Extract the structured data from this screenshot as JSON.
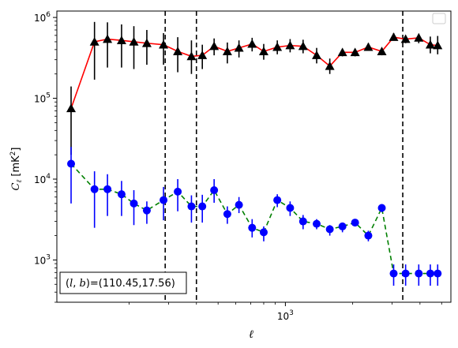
{
  "chart_data": {
    "type": "line",
    "xscale": "log",
    "yscale": "log",
    "xlim": [
      95,
      5500
    ],
    "ylim": [
      300,
      1200000
    ],
    "xlabel": "ℓ",
    "ylabel": "C_ℓ  [mK²]",
    "ylabel_sub": "ℓ",
    "ylabel_main": "C",
    "ylabel_unit": "[mK",
    "ylabel_unit_sup": "2",
    "ylabel_unit_close": "]",
    "legend": "top-right",
    "x_ticks": [
      {
        "value": 1000,
        "base": "10",
        "exp": "3"
      }
    ],
    "y_ticks": [
      {
        "value": 1000,
        "base": "10",
        "exp": "3"
      },
      {
        "value": 10000,
        "base": "10",
        "exp": "4"
      },
      {
        "value": 100000,
        "base": "10",
        "exp": "5"
      },
      {
        "value": 1000000,
        "base": "10",
        "exp": "6"
      }
    ],
    "vlines": [
      290,
      400,
      3350
    ],
    "annotation": "(l, b)=(110.45,17.56)",
    "annotation_prefix": "(",
    "annotation_l": "l",
    "annotation_comma": ", ",
    "annotation_b": "b",
    "annotation_suffix": ")=(110.45,17.56)",
    "series": [
      {
        "color": "#ff0000",
        "marker_color": "#000000",
        "marker": "triangle",
        "linestyle": "solid",
        "errcolor": "#000000",
        "x": [
          110,
          140,
          160,
          185,
          210,
          240,
          285,
          330,
          380,
          425,
          480,
          550,
          620,
          710,
          800,
          920,
          1050,
          1200,
          1380,
          1580,
          1800,
          2050,
          2350,
          2700,
          3050,
          3450,
          3950,
          4450,
          4800
        ],
        "y": [
          75000,
          500000,
          540000,
          520000,
          500000,
          480000,
          460000,
          380000,
          330000,
          340000,
          440000,
          380000,
          420000,
          470000,
          380000,
          430000,
          450000,
          440000,
          340000,
          250000,
          370000,
          370000,
          430000,
          380000,
          570000,
          540000,
          560000,
          460000,
          450000
        ],
        "err_lo": [
          55000,
          330000,
          300000,
          280000,
          270000,
          220000,
          200000,
          170000,
          130000,
          110000,
          100000,
          110000,
          100000,
          90000,
          80000,
          80000,
          80000,
          80000,
          70000,
          50000,
          40000,
          40000,
          40000,
          40000,
          50000,
          60000,
          80000,
          100000,
          100000
        ],
        "err_hi": [
          65000,
          380000,
          330000,
          300000,
          280000,
          220000,
          180000,
          190000,
          190000,
          120000,
          110000,
          110000,
          100000,
          90000,
          90000,
          90000,
          90000,
          90000,
          80000,
          60000,
          40000,
          40000,
          50000,
          40000,
          70000,
          60000,
          70000,
          120000,
          140000
        ]
      },
      {
        "color": "#008000",
        "marker_color": "#0000ff",
        "marker": "circle",
        "linestyle": "dashed",
        "errcolor": "#0000ff",
        "x": [
          110,
          140,
          160,
          185,
          210,
          240,
          285,
          330,
          380,
          425,
          480,
          550,
          620,
          710,
          800,
          920,
          1050,
          1200,
          1380,
          1580,
          1800,
          2050,
          2350,
          2700,
          3050,
          3450,
          3950,
          4450,
          4800
        ],
        "y": [
          15500,
          7500,
          7500,
          6500,
          5000,
          4100,
          5500,
          7000,
          4600,
          4600,
          7300,
          3700,
          4800,
          2500,
          2200,
          5500,
          4400,
          3000,
          2800,
          2400,
          2600,
          2900,
          2000,
          4400,
          680,
          680,
          680,
          680,
          680
        ],
        "err_lo": [
          10500,
          5000,
          4000,
          3000,
          2300,
          1300,
          2400,
          3000,
          1700,
          1700,
          2200,
          900,
          1000,
          600,
          500,
          1000,
          900,
          600,
          400,
          400,
          400,
          300,
          300,
          500,
          200,
          200,
          200,
          200,
          200
        ],
        "err_hi": [
          9500,
          5000,
          4000,
          3000,
          2300,
          1200,
          2500,
          3000,
          1700,
          1800,
          2700,
          900,
          1200,
          700,
          400,
          1000,
          900,
          600,
          400,
          300,
          300,
          300,
          300,
          500,
          200,
          200,
          200,
          200,
          200
        ]
      }
    ]
  }
}
